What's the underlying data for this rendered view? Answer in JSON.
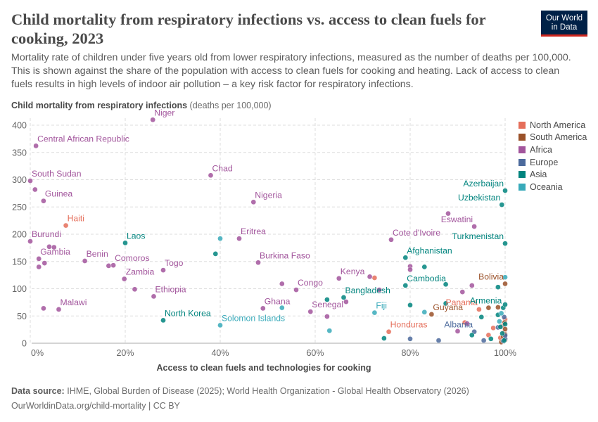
{
  "header": {
    "title": "Child mortality from respiratory infections vs. access to clean fuels for cooking, 2023",
    "subtitle": "Mortality rate of children under five years old from lower respiratory infections, measured as the number of deaths per 100,000. This is shown against the share of the population with access to clean fuels for cooking and heating. Lack of access to clean fuels results in high levels of indoor air pollution – a key risk factor for respiratory infections.",
    "logo_line1": "Our World",
    "logo_line2": "in Data"
  },
  "footer": {
    "source_label": "Data source:",
    "source_text": "IHME, Global Burden of Disease (2025); World Health Organization - Global Health Observatory (2026)",
    "url": "OurWorldinData.org/child-mortality | CC BY"
  },
  "colors": {
    "North America": "#e56e5a",
    "South America": "#9a5129",
    "Africa": "#a2559c",
    "Europe": "#4c6a9c",
    "Asia": "#00847e",
    "Oceania": "#38aaba",
    "grid": "#dddddd",
    "text": "#5b5b5b"
  },
  "chart_data": {
    "type": "scatter",
    "ylabel": "Child mortality from respiratory infections",
    "ylabel_unit": "(deaths per 100,000)",
    "xlabel": "Access to clean fuels and technologies for cooking",
    "xlim": [
      0,
      100
    ],
    "ylim": [
      0,
      400
    ],
    "xticks": [
      "0%",
      "20%",
      "40%",
      "60%",
      "80%",
      "100%"
    ],
    "yticks": [
      "0",
      "50",
      "100",
      "150",
      "200",
      "250",
      "300",
      "350",
      "400"
    ],
    "legend_position": "right",
    "series": [
      {
        "name": "North America",
        "points": [
          {
            "x": 7.5,
            "y": 216,
            "label": "Haiti"
          },
          {
            "x": 72.5,
            "y": 120
          },
          {
            "x": 75.5,
            "y": 21,
            "label": "Honduras"
          },
          {
            "x": 91.5,
            "y": 38
          },
          {
            "x": 94.5,
            "y": 62,
            "label": "Panama"
          },
          {
            "x": 96.5,
            "y": 15
          },
          {
            "x": 97.5,
            "y": 28
          },
          {
            "x": 99,
            "y": 10
          },
          {
            "x": 99.5,
            "y": 32
          },
          {
            "x": 100,
            "y": 44
          },
          {
            "x": 100,
            "y": 6
          },
          {
            "x": 99.8,
            "y": 20
          }
        ]
      },
      {
        "name": "South America",
        "points": [
          {
            "x": 84.5,
            "y": 53,
            "label": "Guyana"
          },
          {
            "x": 100,
            "y": 109,
            "label": "Bolivia"
          },
          {
            "x": 96.5,
            "y": 65
          },
          {
            "x": 98.5,
            "y": 66
          },
          {
            "x": 99.2,
            "y": 2
          },
          {
            "x": 99.6,
            "y": 12
          },
          {
            "x": 100,
            "y": 26
          },
          {
            "x": 99.9,
            "y": 38
          },
          {
            "x": 100,
            "y": 16
          }
        ]
      },
      {
        "name": "Africa",
        "points": [
          {
            "x": 25.8,
            "y": 410,
            "label": "Niger"
          },
          {
            "x": 1.2,
            "y": 362,
            "label": "Central African Republic"
          },
          {
            "x": 0,
            "y": 298,
            "label": "South Sudan"
          },
          {
            "x": 1,
            "y": 282
          },
          {
            "x": 2.8,
            "y": 261,
            "label": "Guinea"
          },
          {
            "x": 38,
            "y": 308,
            "label": "Chad"
          },
          {
            "x": 47,
            "y": 259,
            "label": "Nigeria"
          },
          {
            "x": 0,
            "y": 187,
            "label": "Burundi"
          },
          {
            "x": 4,
            "y": 177
          },
          {
            "x": 5,
            "y": 176
          },
          {
            "x": 1.8,
            "y": 155,
            "label": "Gambia"
          },
          {
            "x": 3,
            "y": 147
          },
          {
            "x": 1.8,
            "y": 140
          },
          {
            "x": 11.5,
            "y": 151,
            "label": "Benin"
          },
          {
            "x": 17.5,
            "y": 143,
            "label": "Comoros"
          },
          {
            "x": 16.5,
            "y": 142
          },
          {
            "x": 28,
            "y": 134,
            "label": "Togo"
          },
          {
            "x": 19.8,
            "y": 118,
            "label": "Zambia"
          },
          {
            "x": 22,
            "y": 99
          },
          {
            "x": 26,
            "y": 86,
            "label": "Ethiopia"
          },
          {
            "x": 6,
            "y": 62,
            "label": "Malawi"
          },
          {
            "x": 2.8,
            "y": 64
          },
          {
            "x": 44,
            "y": 192,
            "label": "Eritrea"
          },
          {
            "x": 48,
            "y": 148,
            "label": "Burkina Faso"
          },
          {
            "x": 53,
            "y": 109
          },
          {
            "x": 56,
            "y": 98,
            "label": "Congo"
          },
          {
            "x": 49,
            "y": 64,
            "label": "Ghana"
          },
          {
            "x": 59,
            "y": 58,
            "label": "Senegal"
          },
          {
            "x": 62.5,
            "y": 49
          },
          {
            "x": 65,
            "y": 119,
            "label": "Kenya"
          },
          {
            "x": 66.5,
            "y": 76
          },
          {
            "x": 71.5,
            "y": 122
          },
          {
            "x": 73.5,
            "y": 98
          },
          {
            "x": 76,
            "y": 190,
            "label": "Cote d'Ivoire"
          },
          {
            "x": 80,
            "y": 141
          },
          {
            "x": 80,
            "y": 135
          },
          {
            "x": 88,
            "y": 238
          },
          {
            "x": 93.5,
            "y": 214,
            "label": "Eswatini"
          },
          {
            "x": 93,
            "y": 106
          },
          {
            "x": 91,
            "y": 94
          },
          {
            "x": 92,
            "y": 36
          },
          {
            "x": 90,
            "y": 22
          }
        ]
      },
      {
        "name": "Europe",
        "points": [
          {
            "x": 80,
            "y": 8
          },
          {
            "x": 86,
            "y": 5
          },
          {
            "x": 93.5,
            "y": 21,
            "label": "Albania"
          },
          {
            "x": 95.5,
            "y": 5
          },
          {
            "x": 98.5,
            "y": 29
          },
          {
            "x": 99.6,
            "y": 4
          },
          {
            "x": 100,
            "y": 8
          },
          {
            "x": 99.8,
            "y": 48
          },
          {
            "x": 100,
            "y": 14
          }
        ]
      },
      {
        "name": "Asia",
        "points": [
          {
            "x": 20,
            "y": 184,
            "label": "Laos"
          },
          {
            "x": 39,
            "y": 164
          },
          {
            "x": 28,
            "y": 42,
            "label": "North Korea"
          },
          {
            "x": 62.5,
            "y": 80
          },
          {
            "x": 66,
            "y": 84,
            "label": "Bangladesh"
          },
          {
            "x": 79,
            "y": 157,
            "label": "Afghanistan"
          },
          {
            "x": 83,
            "y": 140
          },
          {
            "x": 79,
            "y": 106,
            "label": "Cambodia"
          },
          {
            "x": 80,
            "y": 70
          },
          {
            "x": 74.5,
            "y": 9
          },
          {
            "x": 87.5,
            "y": 108
          },
          {
            "x": 87.5,
            "y": 73
          },
          {
            "x": 93,
            "y": 15
          },
          {
            "x": 95,
            "y": 48
          },
          {
            "x": 97,
            "y": 8
          },
          {
            "x": 100,
            "y": 280,
            "label": "Azerbaijan"
          },
          {
            "x": 99.3,
            "y": 254,
            "label": "Uzbekistan"
          },
          {
            "x": 100,
            "y": 183,
            "label": "Turkmenistan"
          },
          {
            "x": 98.5,
            "y": 103
          },
          {
            "x": 99.6,
            "y": 65,
            "label": "Armenia"
          },
          {
            "x": 100,
            "y": 71
          },
          {
            "x": 99,
            "y": 30
          },
          {
            "x": 98.5,
            "y": 52
          },
          {
            "x": 99.4,
            "y": 18
          },
          {
            "x": 100,
            "y": 35
          },
          {
            "x": 99.8,
            "y": 5
          }
        ]
      },
      {
        "name": "Oceania",
        "points": [
          {
            "x": 40,
            "y": 192
          },
          {
            "x": 40,
            "y": 33,
            "label": "Solomon Islands"
          },
          {
            "x": 53,
            "y": 65
          },
          {
            "x": 63,
            "y": 23
          },
          {
            "x": 72.5,
            "y": 56,
            "label": "Fiji"
          },
          {
            "x": 83,
            "y": 57
          },
          {
            "x": 100,
            "y": 121
          },
          {
            "x": 99.2,
            "y": 55
          },
          {
            "x": 98.8,
            "y": 40
          }
        ]
      }
    ]
  }
}
